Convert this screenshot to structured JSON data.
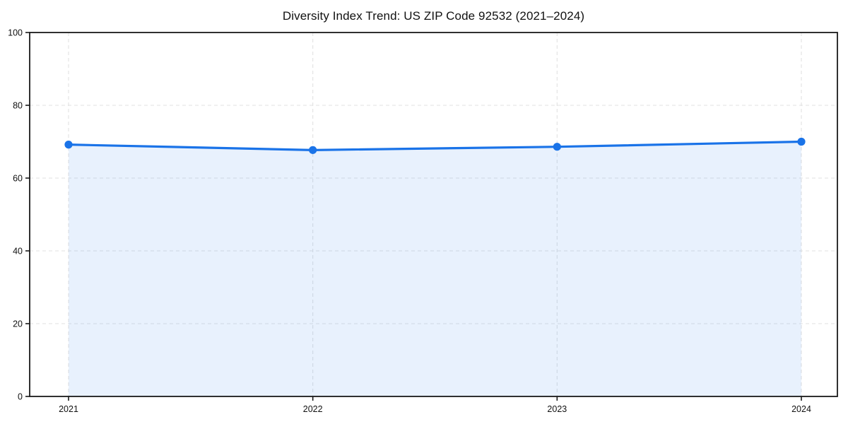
{
  "chart": {
    "title": "Diversity Index Trend: US ZIP Code 92532 (2021–2024)"
  },
  "chart_data": {
    "type": "area",
    "title": "Diversity Index Trend: US ZIP Code 92532 (2021–2024)",
    "categories": [
      "2021",
      "2022",
      "2023",
      "2024"
    ],
    "series": [
      {
        "name": "Diversity Index",
        "values": [
          69.2,
          67.7,
          68.6,
          70.0
        ]
      }
    ],
    "xlabel": "",
    "ylabel": "",
    "ylim": [
      0,
      100
    ],
    "yticks": [
      0,
      20,
      40,
      60,
      80,
      100
    ],
    "grid": "dashed-horizontal-and-vertical",
    "legend_position": "none",
    "colors": {
      "line": "#1a73e8",
      "marker": "#1a73e8",
      "fill": "rgba(26, 115, 232, 0.10)",
      "gridline": "#e2e2e2",
      "spine": "#1a1a1a",
      "tick_text": "#111111"
    }
  }
}
